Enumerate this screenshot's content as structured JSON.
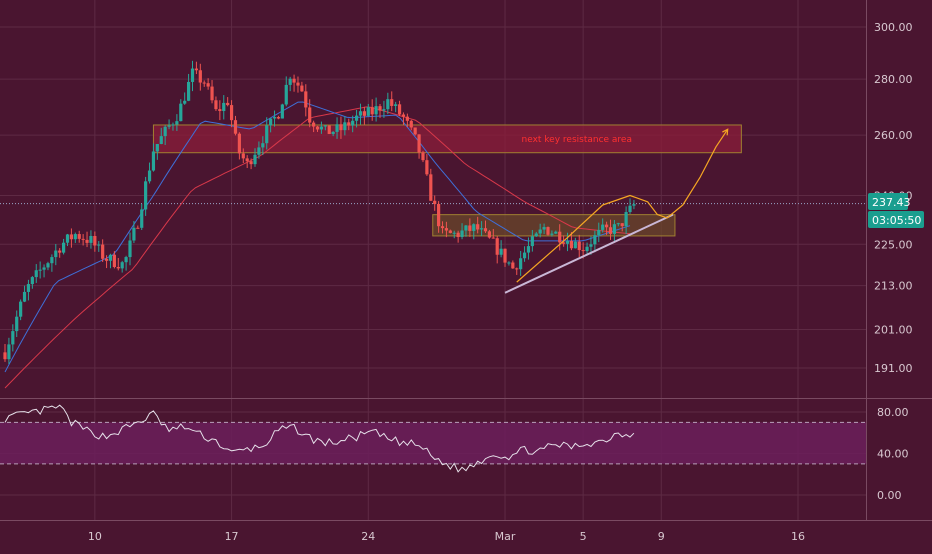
{
  "colors": {
    "background": "#4a1530",
    "up_candle": "#26a69a",
    "down_candle": "#ef5350",
    "ema_fast": "#3f6fd8",
    "ema_slow": "#d8384a",
    "resistance_zone": "#8b1e3a",
    "support_zone": "#6b4a2a",
    "trendline": "#c9b7d6",
    "projection": "#f5a623",
    "rsi_line": "#e6e1ea",
    "rsi_band": "#6b1f5a",
    "price_badge": "#1a9e8f"
  },
  "chart_data": [
    {
      "type": "candlestick",
      "title": "",
      "price_axis": {
        "ticks": [
          {
            "label": "300.00",
            "value": 300
          },
          {
            "label": "280.00",
            "value": 280
          },
          {
            "label": "260.00",
            "value": 260
          },
          {
            "label": "240.00",
            "value": 240
          },
          {
            "label": "225.00",
            "value": 225
          },
          {
            "label": "213.00",
            "value": 213
          },
          {
            "label": "201.00",
            "value": 201
          },
          {
            "label": "191.00",
            "value": 191
          }
        ],
        "scale": "log",
        "ylim": [
          185,
          310
        ]
      },
      "time_axis": {
        "ticks": [
          {
            "label": "10",
            "day": 10
          },
          {
            "label": "17",
            "day": 17
          },
          {
            "label": "24",
            "day": 24
          },
          {
            "label": "Mar",
            "day": 31
          },
          {
            "label": "5",
            "day": 35
          },
          {
            "label": "9",
            "day": 39
          },
          {
            "label": "16",
            "day": 46
          }
        ],
        "xlim": [
          5.4,
          53.5
        ]
      },
      "current_price": {
        "label": "237.43",
        "value": 237.43,
        "countdown": "03:05:50"
      },
      "price_series": {
        "start_day": 5.4,
        "step": 0.2,
        "keypoints": [
          [
            5.4,
            195
          ],
          [
            6.5,
            212
          ],
          [
            7.3,
            218
          ],
          [
            8.3,
            225
          ],
          [
            9.0,
            228
          ],
          [
            9.8,
            226
          ],
          [
            10.5,
            221
          ],
          [
            11.5,
            219
          ],
          [
            12.2,
            232
          ],
          [
            13.0,
            255
          ],
          [
            14.3,
            268
          ],
          [
            15.0,
            282
          ],
          [
            15.6,
            279
          ],
          [
            16.2,
            268
          ],
          [
            16.8,
            272
          ],
          [
            17.3,
            255
          ],
          [
            17.8,
            250
          ],
          [
            18.4,
            257
          ],
          [
            19.4,
            268
          ],
          [
            20.0,
            282
          ],
          [
            20.6,
            276
          ],
          [
            21.0,
            266
          ],
          [
            21.8,
            261
          ],
          [
            22.6,
            262
          ],
          [
            23.4,
            266
          ],
          [
            24.2,
            268
          ],
          [
            25.0,
            272
          ],
          [
            25.8,
            266
          ],
          [
            26.5,
            257
          ],
          [
            27.2,
            240
          ],
          [
            27.8,
            228
          ],
          [
            28.5,
            228
          ],
          [
            29.5,
            230
          ],
          [
            30.4,
            225
          ],
          [
            31.4,
            218
          ],
          [
            32.2,
            224
          ],
          [
            33.0,
            230
          ],
          [
            34.0,
            227
          ],
          [
            35.0,
            224
          ],
          [
            36.0,
            229
          ],
          [
            36.8,
            230
          ],
          [
            37.6,
            237
          ]
        ]
      },
      "ema_fast": {
        "keypoints": [
          [
            5.4,
            190
          ],
          [
            8.0,
            214
          ],
          [
            11.0,
            222
          ],
          [
            13.0,
            240
          ],
          [
            15.5,
            265
          ],
          [
            18.0,
            262
          ],
          [
            20.5,
            272
          ],
          [
            23.0,
            266
          ],
          [
            25.5,
            267
          ],
          [
            27.5,
            250
          ],
          [
            29.5,
            235
          ],
          [
            32.0,
            226
          ],
          [
            35.0,
            226
          ],
          [
            37.6,
            231
          ]
        ]
      },
      "ema_slow": {
        "keypoints": [
          [
            5.4,
            186
          ],
          [
            9.0,
            204
          ],
          [
            12.0,
            218
          ],
          [
            15.0,
            242
          ],
          [
            18.5,
            253
          ],
          [
            21.0,
            266
          ],
          [
            24.0,
            270
          ],
          [
            26.5,
            265
          ],
          [
            29.0,
            250
          ],
          [
            32.0,
            238
          ],
          [
            34.5,
            230
          ],
          [
            37.6,
            228
          ]
        ]
      },
      "annotations": {
        "resistance_zone": {
          "day_start": 13.0,
          "day_end": 43.1,
          "price_low": 254,
          "price_high": 263.5,
          "label": "next key resistance area"
        },
        "support_zone": {
          "day_start": 27.3,
          "day_end": 39.7,
          "price_low": 227.5,
          "price_high": 234
        },
        "trendline": {
          "from": [
            31.0,
            211
          ],
          "to": [
            39.6,
            234
          ]
        },
        "projection_path": [
          [
            31.6,
            214
          ],
          [
            34.2,
            227
          ],
          [
            36.0,
            237
          ],
          [
            37.4,
            240
          ],
          [
            38.3,
            238
          ],
          [
            38.8,
            234
          ],
          [
            39.3,
            233
          ],
          [
            40.1,
            237
          ],
          [
            41.0,
            246
          ],
          [
            41.8,
            256
          ],
          [
            42.4,
            262
          ]
        ]
      }
    },
    {
      "type": "line",
      "title": "",
      "rsi_axis": {
        "ticks": [
          {
            "label": "80.00",
            "value": 80
          },
          {
            "label": "40.00",
            "value": 40
          },
          {
            "label": "0.00",
            "value": 0
          }
        ],
        "ylim": [
          -15,
          100
        ]
      },
      "band": {
        "upper": 70,
        "lower": 30
      },
      "series": [
        {
          "keypoints": [
            [
              5.4,
              74
            ],
            [
              6.5,
              78
            ],
            [
              7.5,
              82
            ],
            [
              8.2,
              85
            ],
            [
              8.8,
              70
            ],
            [
              9.6,
              62
            ],
            [
              10.5,
              56
            ],
            [
              11.3,
              62
            ],
            [
              12.2,
              70
            ],
            [
              13.0,
              78
            ],
            [
              13.8,
              62
            ],
            [
              14.6,
              66
            ],
            [
              15.4,
              58
            ],
            [
              16.2,
              52
            ],
            [
              17.0,
              40
            ],
            [
              17.8,
              44
            ],
            [
              18.6,
              47
            ],
            [
              19.4,
              62
            ],
            [
              20.2,
              65
            ],
            [
              21.0,
              55
            ],
            [
              21.8,
              50
            ],
            [
              22.6,
              52
            ],
            [
              23.4,
              56
            ],
            [
              24.2,
              61
            ],
            [
              25.0,
              54
            ],
            [
              25.8,
              50
            ],
            [
              26.6,
              48
            ],
            [
              27.4,
              35
            ],
            [
              28.2,
              28
            ],
            [
              28.9,
              24
            ],
            [
              29.6,
              32
            ],
            [
              30.4,
              40
            ],
            [
              31.2,
              37
            ],
            [
              32.0,
              44
            ],
            [
              32.8,
              42
            ],
            [
              33.6,
              49
            ],
            [
              34.4,
              46
            ],
            [
              35.2,
              50
            ],
            [
              36.0,
              52
            ],
            [
              36.8,
              60
            ],
            [
              37.4,
              58
            ],
            [
              37.6,
              62
            ]
          ]
        }
      ]
    }
  ]
}
